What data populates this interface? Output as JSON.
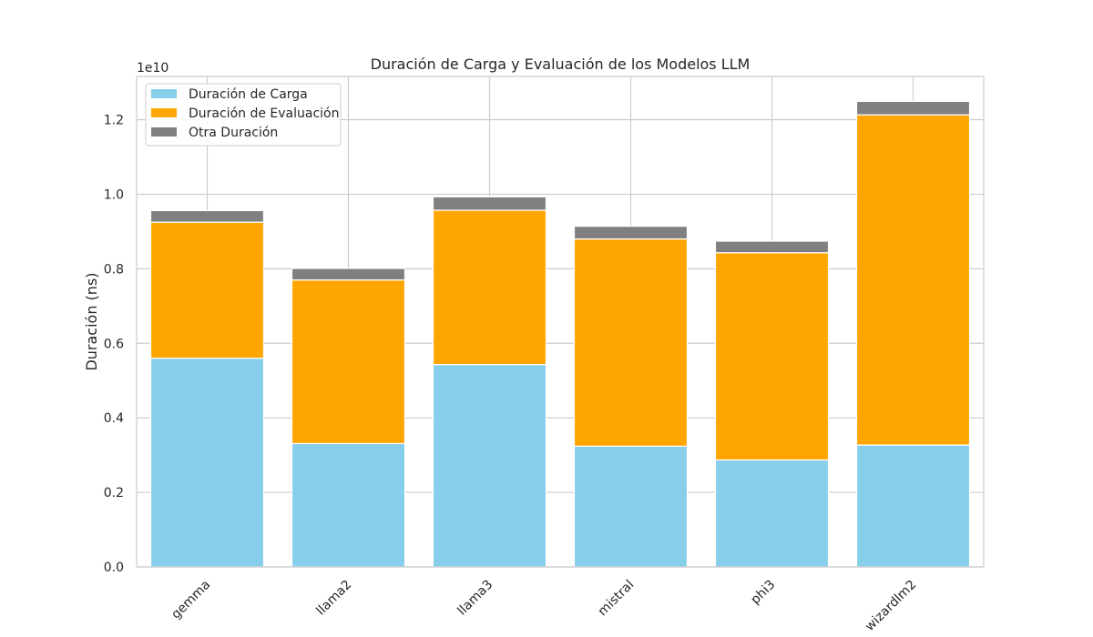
{
  "chart_data": {
    "type": "bar",
    "stacked": true,
    "title": "Duración de Carga y Evaluación de los Modelos LLM",
    "xlabel": "",
    "ylabel": "Duración (ns)",
    "y_scale_label": "1e10",
    "categories": [
      "gemma",
      "llama2",
      "llama3",
      "mistral",
      "phi3",
      "wizardlm2"
    ],
    "y_ticks": [
      "0.0",
      "0.2",
      "0.4",
      "0.6",
      "0.8",
      "1.0",
      "1.2"
    ],
    "ylim": [
      0,
      1.316
    ],
    "grid": true,
    "legend_position": "top-left",
    "series": [
      {
        "name": "Duración de Carga",
        "color": "#87CEEB",
        "values": [
          0.56,
          0.331,
          0.543,
          0.324,
          0.287,
          0.327
        ]
      },
      {
        "name": "Duración de Evaluación",
        "color": "#FFA500",
        "values": [
          0.365,
          0.439,
          0.414,
          0.556,
          0.556,
          0.886
        ]
      },
      {
        "name": "Otra Duración",
        "color": "#808080",
        "values": [
          0.031,
          0.031,
          0.036,
          0.034,
          0.031,
          0.036
        ]
      }
    ]
  }
}
